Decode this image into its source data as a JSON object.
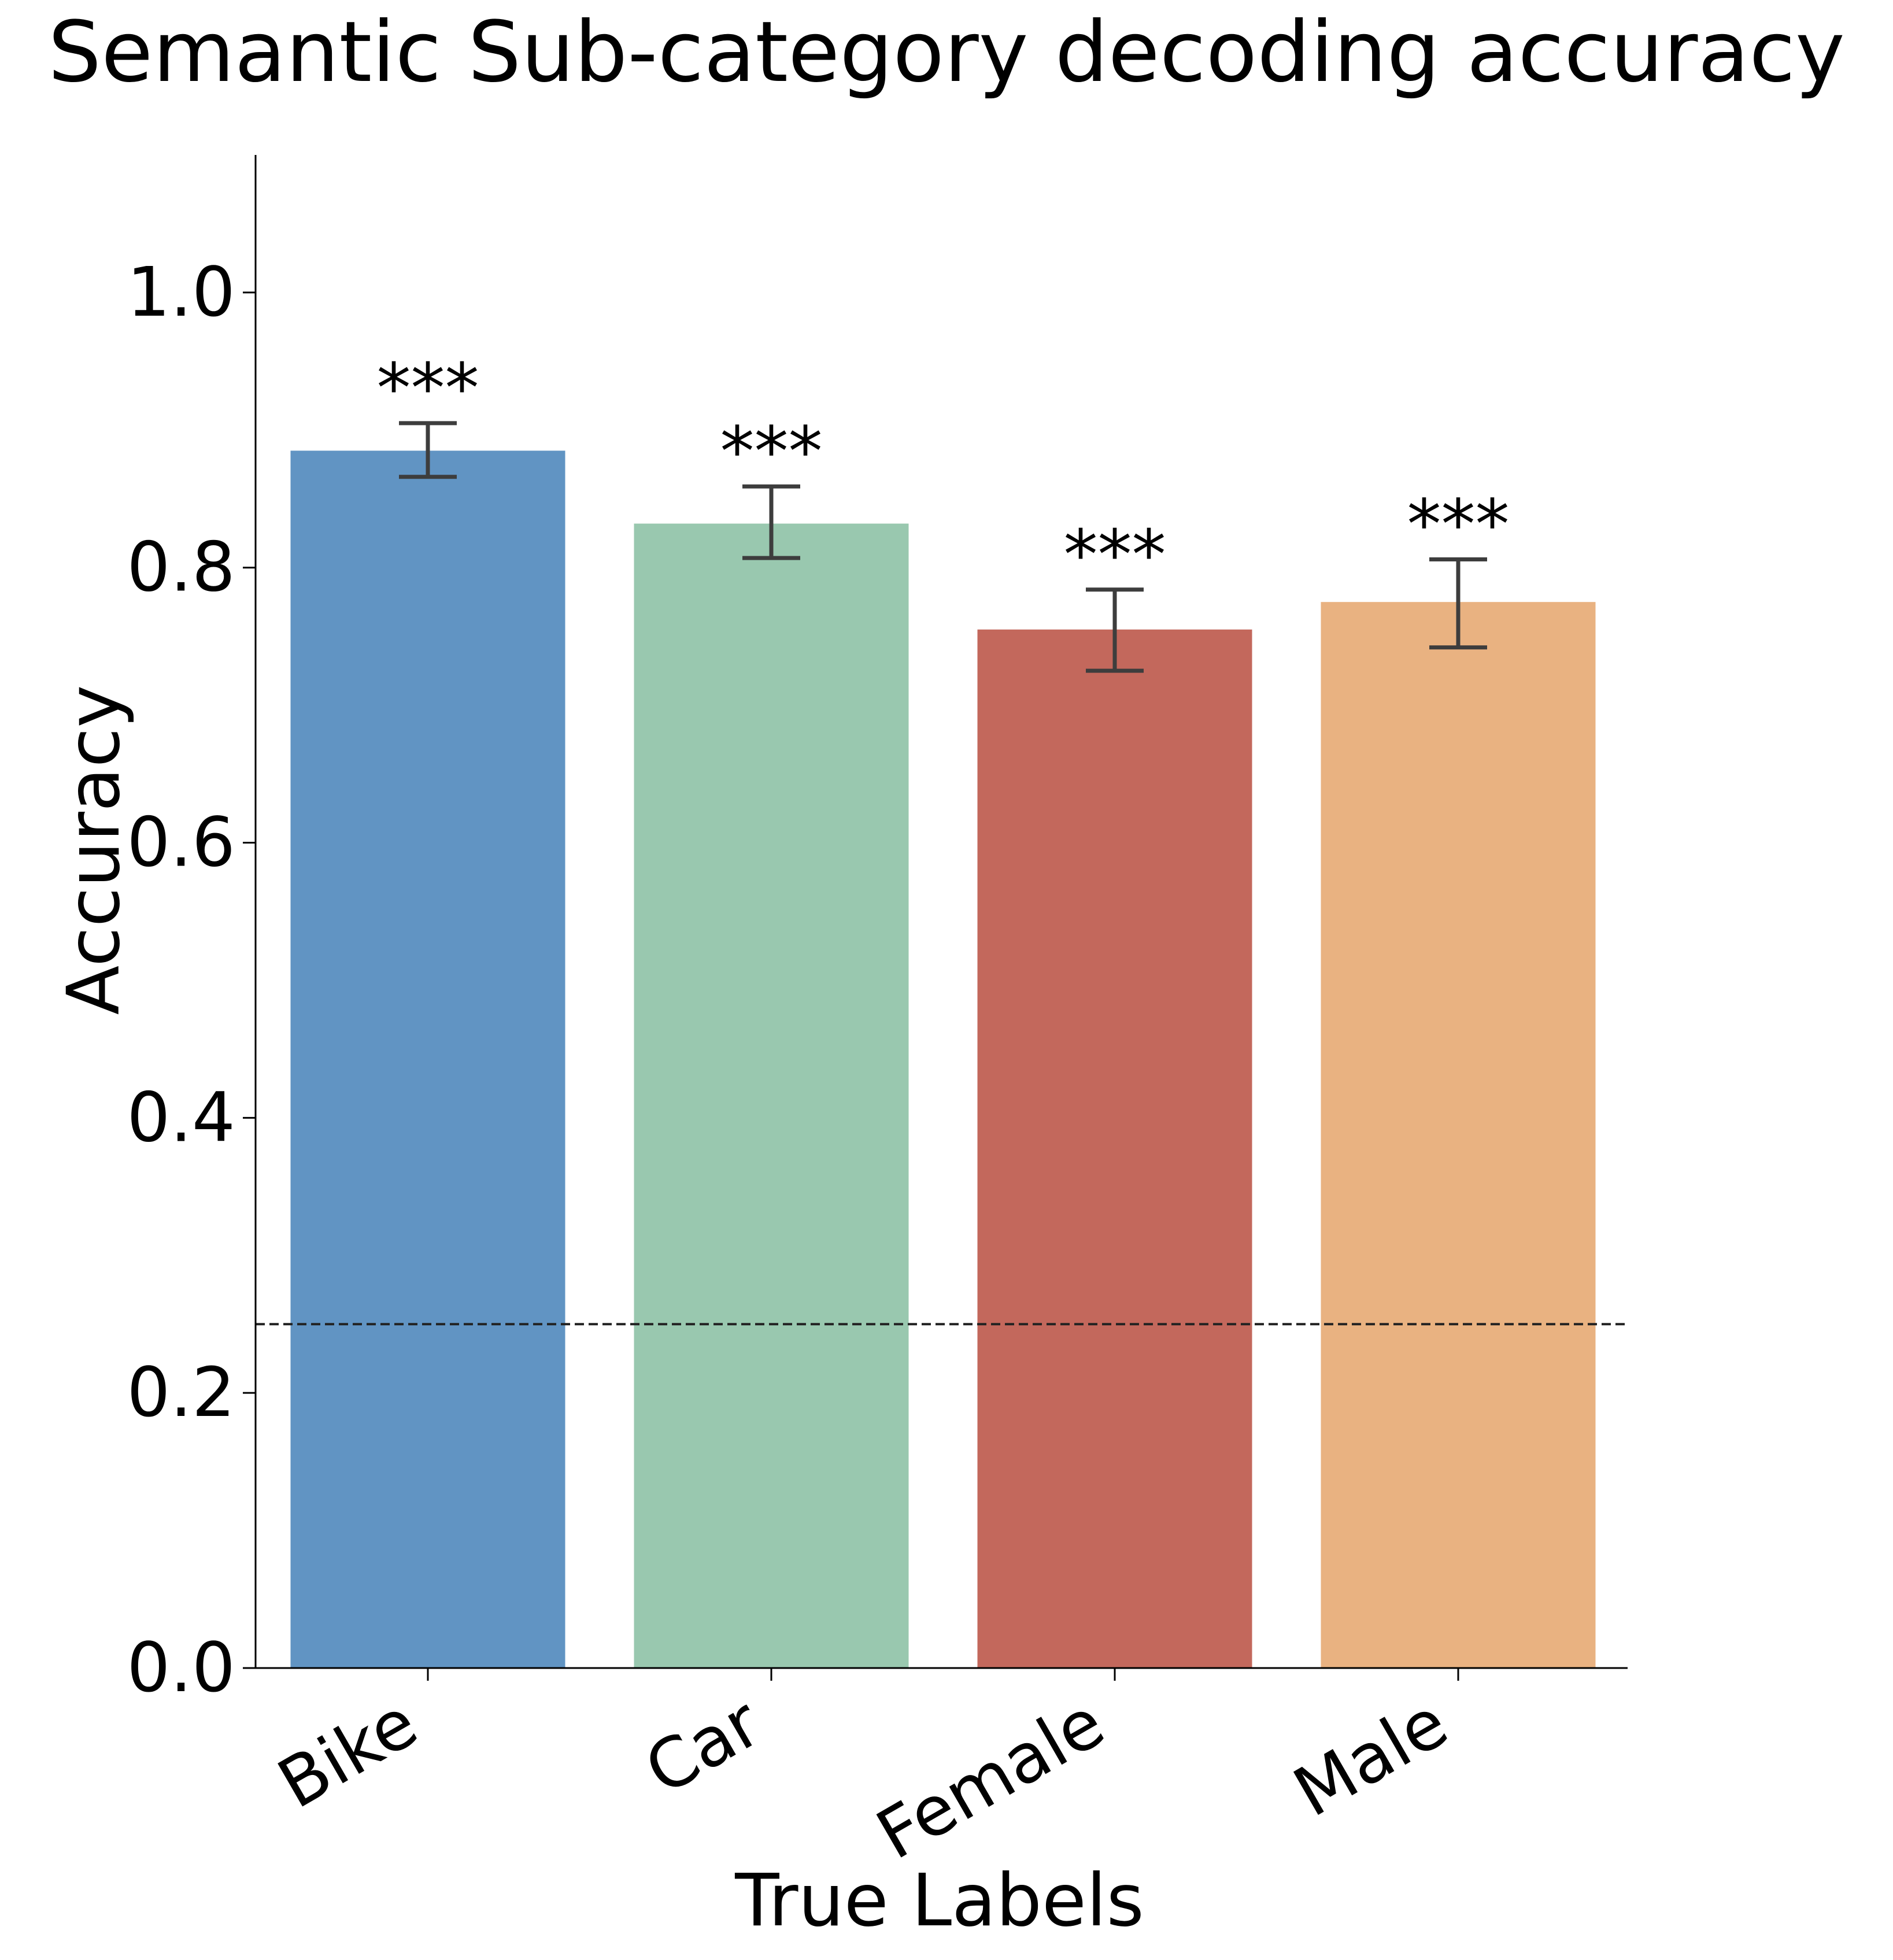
{
  "chart_data": {
    "type": "bar",
    "title": "Semantic Sub-category decoding accuracy",
    "xlabel": "True Labels",
    "ylabel": "Accuracy",
    "categories": [
      "Bike",
      "Car",
      "Female",
      "Male"
    ],
    "values": [
      0.885,
      0.832,
      0.755,
      0.775
    ],
    "error_low": [
      0.866,
      0.807,
      0.725,
      0.742
    ],
    "error_high": [
      0.905,
      0.859,
      0.784,
      0.806
    ],
    "annotations": [
      "***",
      "***",
      "***",
      "***"
    ],
    "colors": [
      "#6194c3",
      "#99c8af",
      "#c3685c",
      "#e9b281"
    ],
    "chance_level": 0.25,
    "ylim": [
      0,
      1.1
    ],
    "yticks": [
      0.0,
      0.2,
      0.4,
      0.6,
      0.8,
      1.0
    ],
    "ytick_labels": [
      "0.0",
      "0.2",
      "0.4",
      "0.6",
      "0.8",
      "1.0"
    ],
    "grid": false,
    "legend": "none"
  }
}
